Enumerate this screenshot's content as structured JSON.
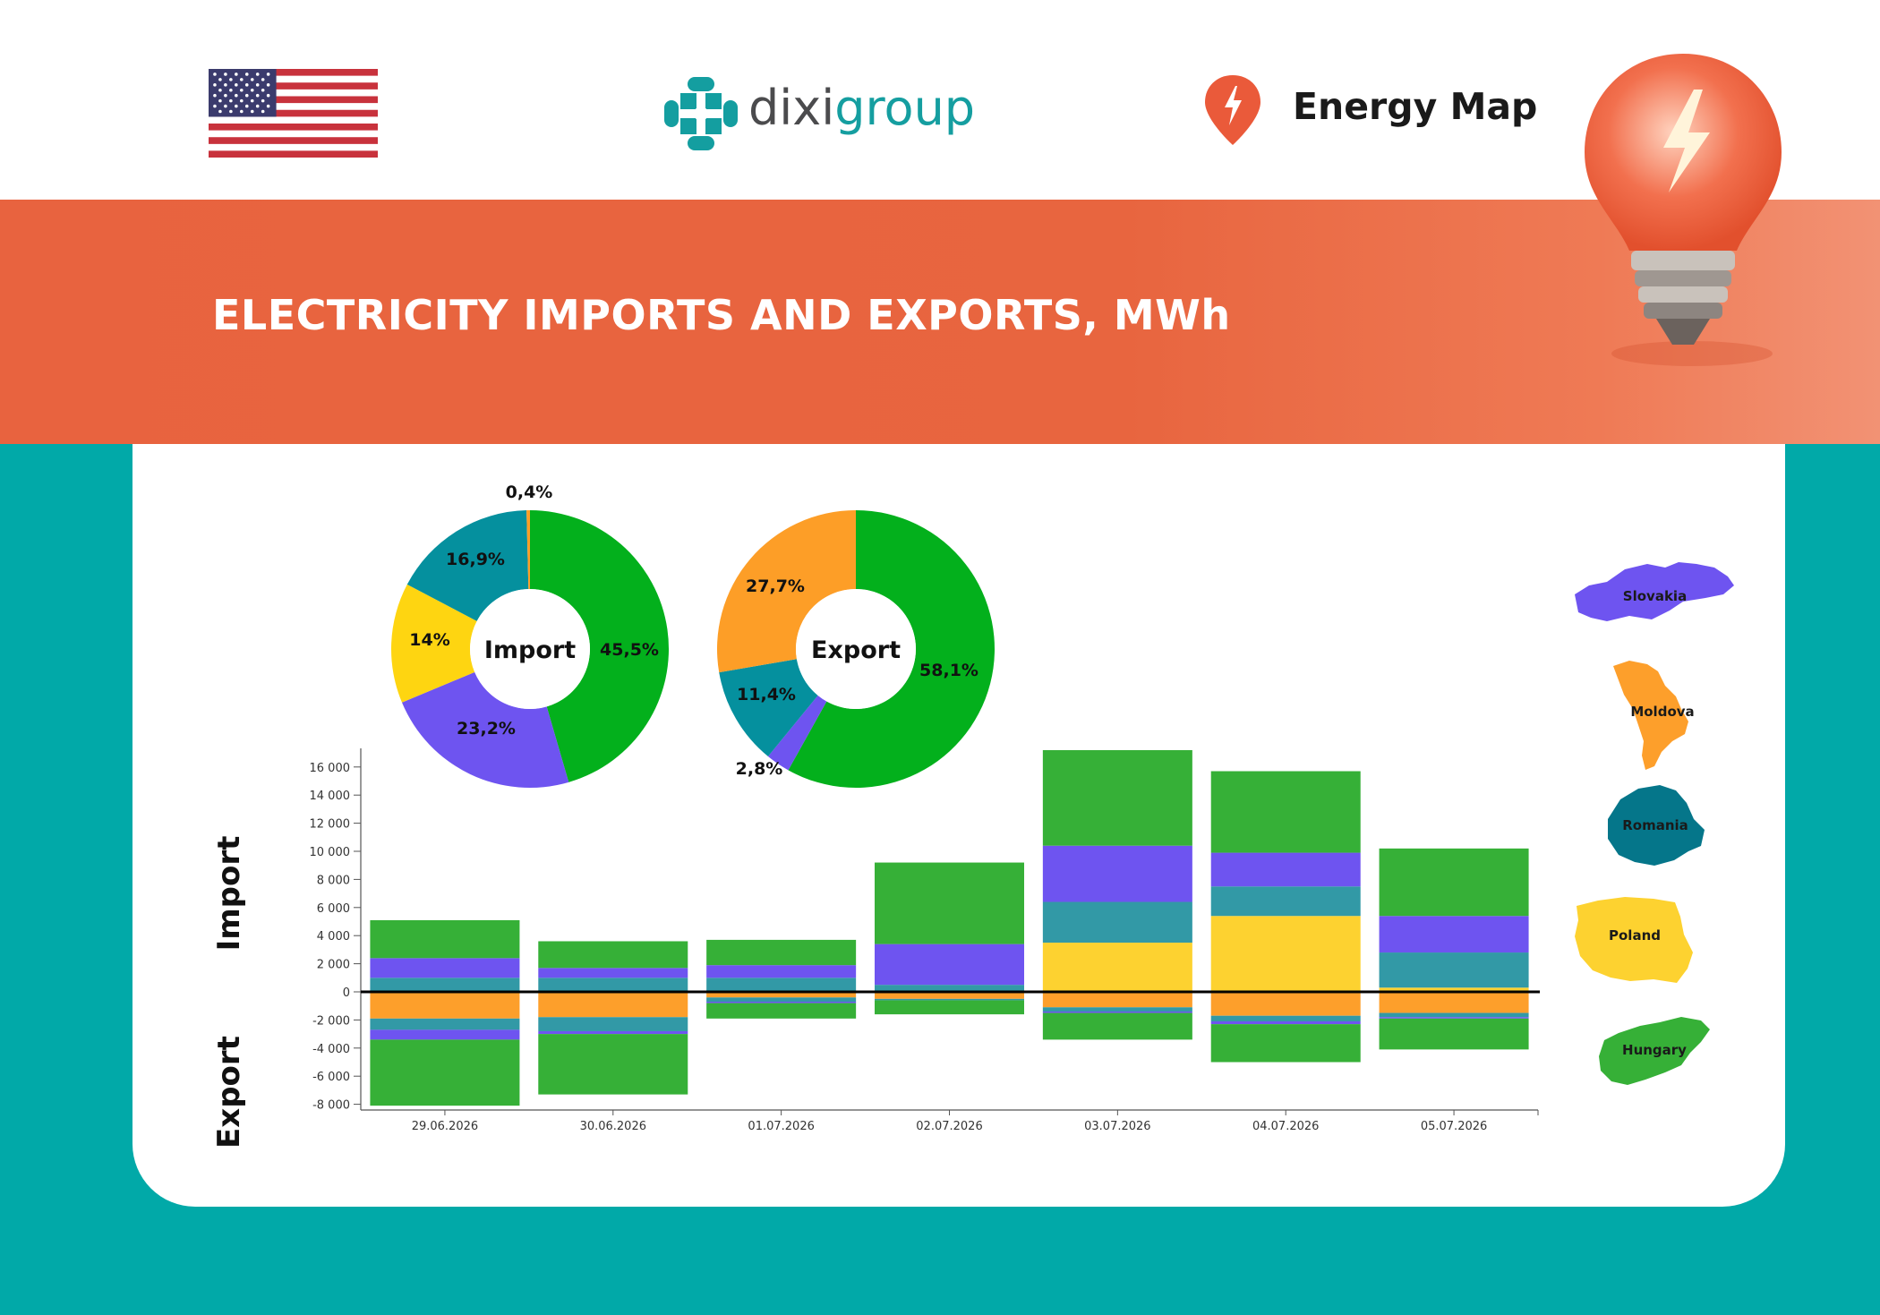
{
  "header": {
    "brand_left": "dixi",
    "brand_right": "group",
    "product_name": "Energy Map",
    "flag_icon": "us-flag-icon"
  },
  "banner": {
    "title": "ELECTRICITY IMPORTS AND EXPORTS, MWh"
  },
  "colors": {
    "Hungary": "#36b037",
    "Slovakia": "#6e54f0",
    "Romania": "#3299a6",
    "Poland": "#fdd230",
    "Moldova": "#fd9f2b",
    "pie_hungary": "#03b01c",
    "pie_romania": "#05909e",
    "pie_poland": "#fed511",
    "pie_moldova": "#fd9e27",
    "pie_slovakia": "#6e54f0"
  },
  "legend": [
    {
      "name": "Slovakia"
    },
    {
      "name": "Moldova"
    },
    {
      "name": "Romania"
    },
    {
      "name": "Poland"
    },
    {
      "name": "Hungary"
    }
  ],
  "chart_data": [
    {
      "type": "pie",
      "center_label": "Import",
      "slices": [
        {
          "country": "Hungary",
          "value": 45.5,
          "label": "45,5%"
        },
        {
          "country": "Slovakia",
          "value": 23.2,
          "label": "23,2%"
        },
        {
          "country": "Poland",
          "value": 14.0,
          "label": "14%"
        },
        {
          "country": "Romania",
          "value": 16.9,
          "label": "16,9%"
        },
        {
          "country": "Moldova",
          "value": 0.4,
          "label": "0,4%"
        }
      ]
    },
    {
      "type": "pie",
      "center_label": "Export",
      "slices": [
        {
          "country": "Hungary",
          "value": 58.1,
          "label": "58,1%"
        },
        {
          "country": "Slovakia",
          "value": 2.8,
          "label": "2,8%"
        },
        {
          "country": "Romania",
          "value": 11.4,
          "label": "11,4%"
        },
        {
          "country": "Moldova",
          "value": 27.7,
          "label": "27,7%"
        }
      ]
    },
    {
      "type": "bar",
      "stacked": true,
      "categories": [
        "29.06.2026",
        "30.06.2026",
        "01.07.2026",
        "02.07.2026",
        "03.07.2026",
        "04.07.2026",
        "05.07.2026"
      ],
      "import_series": [
        {
          "name": "Poland",
          "values": [
            0,
            0,
            0,
            0,
            3500,
            5400,
            300
          ]
        },
        {
          "name": "Romania",
          "values": [
            1000,
            1000,
            1000,
            500,
            2900,
            2100,
            2500
          ]
        },
        {
          "name": "Slovakia",
          "values": [
            1400,
            700,
            900,
            2900,
            4000,
            2400,
            2600
          ]
        },
        {
          "name": "Hungary",
          "values": [
            2700,
            1900,
            1800,
            5800,
            6800,
            5800,
            4800
          ]
        }
      ],
      "export_series": [
        {
          "name": "Moldova",
          "values": [
            -1900,
            -1800,
            -400,
            -500,
            -1100,
            -1700,
            -1500
          ]
        },
        {
          "name": "Romania",
          "values": [
            -800,
            -1000,
            -300,
            -100,
            -300,
            -400,
            -300
          ]
        },
        {
          "name": "Slovakia",
          "values": [
            -700,
            -200,
            -100,
            0,
            -100,
            -200,
            -100
          ]
        },
        {
          "name": "Hungary",
          "values": [
            -4700,
            -4300,
            -1100,
            -1000,
            -1900,
            -2700,
            -2200
          ]
        }
      ],
      "y_ticks": [
        "16 000",
        "14 000",
        "12 000",
        "10 000",
        "8 000",
        "6 000",
        "4 000",
        "2 000",
        "0",
        "-2 000",
        "-4 000",
        "-6 000",
        "-8 000"
      ],
      "ylim": [
        -8000,
        16000
      ],
      "side_labels": {
        "positive": "Import",
        "negative": "Export"
      },
      "grid": false
    }
  ]
}
